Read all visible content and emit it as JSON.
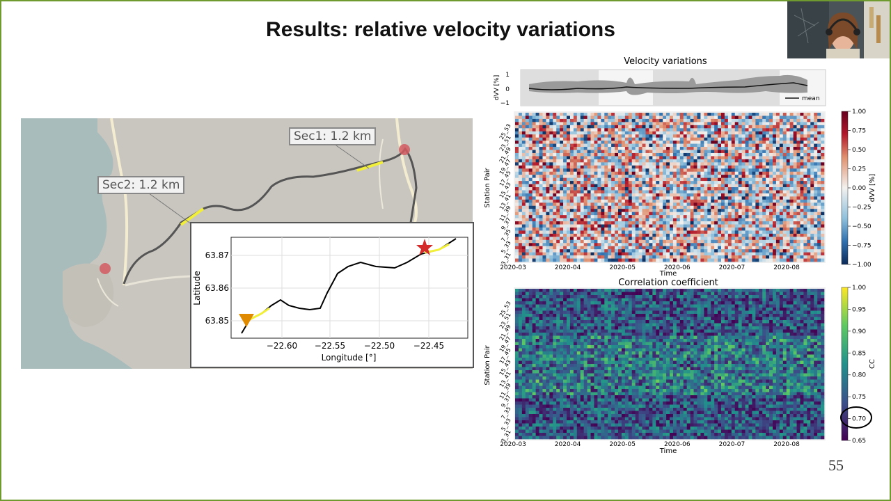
{
  "slide": {
    "title": "Results: relative velocity variations",
    "number": "55"
  },
  "map": {
    "label_sec1": "Sec1: 1.2 km",
    "label_sec2": "Sec2: 1.2 km"
  },
  "inset": {
    "xlabel": "Longitude [°]",
    "ylabel": "Latitude",
    "xticks": [
      "−22.60",
      "−22.55",
      "−22.50",
      "−22.45"
    ],
    "yticks": [
      "63.87",
      "63.86",
      "63.85"
    ]
  },
  "velocity_panel": {
    "title": "Velocity variations",
    "ylabel": "dVV [%]",
    "yticks": [
      "1",
      "0",
      "−1"
    ],
    "legend": "mean"
  },
  "heatmap1": {
    "ylabel": "Station Pair",
    "xlabel": "Time",
    "xticks": [
      "2020-03",
      "2020-04",
      "2020-05",
      "2020-06",
      "2020-07",
      "2020-08"
    ],
    "yticks": [
      "25_53",
      "23_51",
      "21_49",
      "19_47",
      "17_45",
      "15_43",
      "13_41",
      "11_39",
      "9_37",
      "7_35",
      "5_33",
      "3_31"
    ],
    "cbar_label": "dVV [%]",
    "cbar_ticks": [
      "1.00",
      "0.75",
      "0.50",
      "0.25",
      "0.00",
      "−0.25",
      "−0.50",
      "−0.75",
      "−1.00"
    ]
  },
  "heatmap2": {
    "title": "Correlation coefficient",
    "ylabel": "Station Pair",
    "xlabel": "Time",
    "xticks": [
      "2020-03",
      "2020-04",
      "2020-05",
      "2020-06",
      "2020-07",
      "2020-08"
    ],
    "yticks": [
      "25_53",
      "23_51",
      "21_49",
      "19_47",
      "17_45",
      "15_43",
      "13_41",
      "11_39",
      "9_37",
      "7_35",
      "5_33",
      "3_31"
    ],
    "cbar_label": "CC",
    "cbar_ticks": [
      "1.00",
      "0.95",
      "0.90",
      "0.85",
      "0.80",
      "0.75",
      "0.70",
      "0.65"
    ]
  },
  "colors": {
    "frame": "#6e9a2f",
    "sec_highlight": "#f2ef3a",
    "cable": "#555555",
    "marker_red": "#d42a2a",
    "marker_orange": "#e08a00"
  }
}
